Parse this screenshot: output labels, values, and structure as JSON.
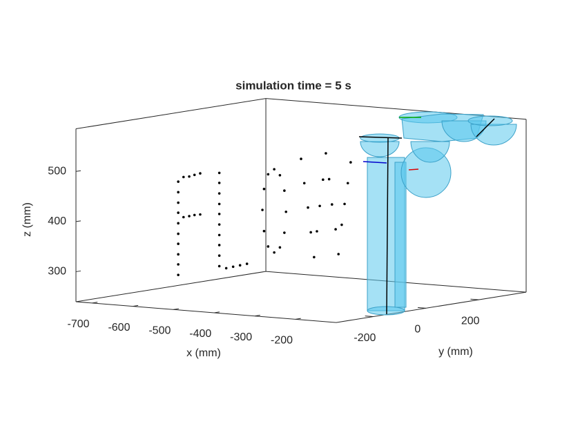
{
  "chart_data": {
    "type": "scatter3d",
    "title": "simulation time = 5 s",
    "xlabel": "x (mm)",
    "ylabel": "y (mm)",
    "zlabel": "z (mm)",
    "xlim": [
      -740,
      -100
    ],
    "ylim": [
      -340,
      380
    ],
    "zlim": [
      240,
      585
    ],
    "xticks": [
      -700,
      -600,
      -500,
      -400,
      -300,
      -200
    ],
    "yticks": [
      -200,
      0,
      200
    ],
    "zticks": [
      300,
      400,
      500
    ],
    "color": "#000000",
    "x": [
      -709,
      -709,
      -709,
      -709,
      -709,
      -709,
      -709,
      -709,
      -709,
      -709,
      -696,
      -682,
      -669,
      -655,
      -696,
      -682,
      -669,
      -655,
      -608,
      -608,
      -608,
      -608,
      -608,
      -608,
      -608,
      -608,
      -608,
      -608,
      -591,
      -574,
      -557,
      -540,
      -444,
      -448,
      -459,
      -473,
      -488,
      -498,
      -502,
      -498,
      -488,
      -473,
      -459,
      -448,
      -407,
      -399,
      -390,
      -383,
      -375,
      -368,
      -361,
      -353,
      -346,
      -338,
      -331,
      -322,
      -315,
      -307,
      -300,
      -292,
      -285
    ],
    "y": [
      0,
      0,
      0,
      0,
      0,
      0,
      0,
      0,
      0,
      0,
      0,
      0,
      0,
      0,
      0,
      0,
      0,
      0,
      0,
      0,
      0,
      0,
      0,
      0,
      0,
      0,
      0,
      0,
      0,
      0,
      0,
      0,
      0,
      0,
      0,
      0,
      0,
      0,
      0,
      0,
      0,
      0,
      0,
      0,
      0,
      0,
      0,
      0,
      0,
      0,
      0,
      0,
      0,
      0,
      0,
      0,
      0,
      0,
      0,
      0,
      0
    ],
    "z": [
      267,
      288,
      308,
      329,
      349,
      370,
      391,
      411,
      432,
      453,
      463,
      465,
      469,
      473,
      383,
      386,
      389,
      391,
      477,
      457,
      436,
      415,
      395,
      374,
      353,
      333,
      312,
      291,
      288,
      292,
      296,
      300,
      410,
      368,
      338,
      327,
      338,
      368,
      410,
      452,
      482,
      493,
      482,
      452,
      518,
      470,
      422,
      373,
      324,
      376,
      427,
      480,
      533,
      482,
      432,
      383,
      334,
      393,
      435,
      477,
      519
    ]
  }
}
